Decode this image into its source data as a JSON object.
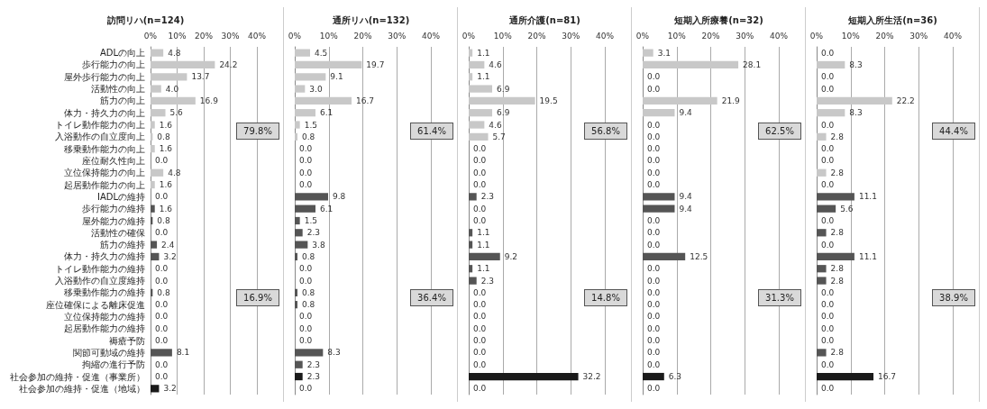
{
  "chart_data": [
    {
      "type": "bar",
      "orientation": "horizontal",
      "title": "訪問リハ(n=124)",
      "categories": [
        "ADLの向上",
        "歩行能力の向上",
        "屋外歩行能力の向上",
        "活動性の向上",
        "筋力の向上",
        "体力・持久力の向上",
        "トイレ動作能力の向上",
        "入浴動作の自立度向上",
        "移乗動作能力の向上",
        "座位耐久性向上",
        "立位保持能力の向上",
        "起居動作能力の向上",
        "IADLの維持",
        "歩行能力の維持",
        "屋外能力の維持",
        "活動性の確保",
        "筋力の維持",
        "体力・持久力の維持",
        "トイレ動作能力の維持",
        "入浴動作の自立度維持",
        "移乗動作能力の維持",
        "座位確保による離床促進",
        "立位保持能力の維持",
        "起居動作能力の維持",
        "褥瘡予防",
        "関節可動域の維持",
        "拘縮の進行予防",
        "社会参加の維持・促進（事業所）",
        "社会参加の維持・促進（地域）"
      ],
      "values": [
        4.8,
        24.2,
        13.7,
        4.0,
        16.9,
        5.6,
        1.6,
        0.8,
        1.6,
        0.0,
        4.8,
        1.6,
        0.0,
        1.6,
        0.8,
        0.0,
        2.4,
        3.2,
        0.0,
        0.0,
        0.8,
        0.0,
        0.0,
        0.0,
        0.0,
        8.1,
        0.0,
        0.0,
        3.2
      ],
      "value_labels": [
        "4.8",
        "24.2",
        "13.7",
        "4.0",
        "16.9",
        "5.6",
        "1.6",
        "0.8",
        "1.6",
        "0.0",
        "4.8",
        "1.6",
        "0.0",
        "1.6",
        "0.8",
        "0.0",
        "2.4",
        "3.2",
        "0.0",
        "0.0",
        "0.8",
        "0.0",
        "0.0",
        "0.0",
        "0.0",
        "8.1",
        "0.0",
        "0.0",
        "3.2"
      ],
      "colors": [
        "#c8c8c8",
        "#c8c8c8",
        "#c8c8c8",
        "#c8c8c8",
        "#c8c8c8",
        "#c8c8c8",
        "#c8c8c8",
        "#c8c8c8",
        "#c8c8c8",
        "#c8c8c8",
        "#c8c8c8",
        "#c8c8c8",
        "#555555",
        "#555555",
        "#555555",
        "#555555",
        "#555555",
        "#555555",
        "#555555",
        "#555555",
        "#555555",
        "#555555",
        "#555555",
        "#555555",
        "#555555",
        "#555555",
        "#555555",
        "#1a1a1a",
        "#1a1a1a"
      ],
      "xlim": [
        0,
        40
      ],
      "xticks": [
        {
          "value": 0,
          "label": "0%"
        },
        {
          "value": 10,
          "label": "10%"
        },
        {
          "value": 20,
          "label": "20%"
        },
        {
          "value": 30,
          "label": "30%"
        },
        {
          "value": 40,
          "label": "40%"
        }
      ],
      "grid": "x",
      "annotations": [
        "79.8%",
        "16.9%"
      ]
    },
    {
      "type": "bar",
      "orientation": "horizontal",
      "title": "通所リハ(n=132)",
      "categories": [
        null,
        null,
        null,
        null,
        null,
        null,
        null,
        null,
        null,
        null,
        null,
        null,
        null,
        null,
        null,
        null,
        null,
        null,
        null,
        null,
        null,
        null,
        null,
        null,
        null,
        null,
        null,
        null,
        null
      ],
      "values": [
        4.5,
        19.7,
        9.1,
        3.0,
        16.7,
        6.1,
        1.5,
        0.8,
        0.0,
        0.0,
        0.0,
        0.0,
        9.8,
        6.1,
        1.5,
        2.3,
        3.8,
        0.8,
        0.0,
        0.0,
        0.8,
        0.8,
        0.0,
        0.0,
        0.0,
        8.3,
        2.3,
        2.3,
        0.0
      ],
      "value_labels": [
        "4.5",
        "19.7",
        "9.1",
        "3.0",
        "16.7",
        "6.1",
        "1.5",
        "0.8",
        "0.0",
        "0.0",
        "0.0",
        "0.0",
        "9.8",
        "6.1",
        "1.5",
        "2.3",
        "3.8",
        "0.8",
        "0.0",
        "0.0",
        "0.8",
        "0.8",
        "0.0",
        "0.0",
        "0.0",
        "8.3",
        "2.3",
        "2.3",
        "0.0"
      ],
      "colors": [
        "#c8c8c8",
        "#c8c8c8",
        "#c8c8c8",
        "#c8c8c8",
        "#c8c8c8",
        "#c8c8c8",
        "#c8c8c8",
        "#c8c8c8",
        "#c8c8c8",
        "#c8c8c8",
        "#c8c8c8",
        "#c8c8c8",
        "#555555",
        "#555555",
        "#555555",
        "#555555",
        "#555555",
        "#555555",
        "#555555",
        "#555555",
        "#555555",
        "#555555",
        "#555555",
        "#555555",
        "#555555",
        "#555555",
        "#555555",
        "#1a1a1a",
        "#1a1a1a"
      ],
      "xlim": [
        0,
        40
      ],
      "xticks": [
        {
          "value": 0,
          "label": "0%"
        },
        {
          "value": 10,
          "label": "10%"
        },
        {
          "value": 20,
          "label": "20%"
        },
        {
          "value": 30,
          "label": "30%"
        },
        {
          "value": 40,
          "label": "40%"
        }
      ],
      "grid": "x",
      "tick_labels": "x",
      "annotations": [
        "61.4%",
        "36.4%"
      ]
    },
    {
      "type": "bar",
      "orientation": "horizontal",
      "title": "通所介護(n=81)",
      "categories": [
        null,
        null,
        null,
        null,
        null,
        null,
        null,
        null,
        null,
        null,
        null,
        null,
        null,
        null,
        null,
        null,
        null,
        null,
        null,
        null,
        null,
        null,
        null,
        null,
        null,
        null,
        null,
        null,
        null
      ],
      "values": [
        1.1,
        4.6,
        1.1,
        6.9,
        19.5,
        6.9,
        4.6,
        5.7,
        0.0,
        0.0,
        0.0,
        0.0,
        2.3,
        0.0,
        0.0,
        1.1,
        1.1,
        9.2,
        1.1,
        2.3,
        0.0,
        0.0,
        0.0,
        0.0,
        0.0,
        0.0,
        0.0,
        32.2,
        0.0
      ],
      "value_labels": [
        "1.1",
        "4.6",
        "1.1",
        "6.9",
        "19.5",
        "6.9",
        "4.6",
        "5.7",
        "0.0",
        "0.0",
        "0.0",
        "0.0",
        "2.3",
        "0.0",
        "0.0",
        "1.1",
        "1.1",
        "9.2",
        "1.1",
        "2.3",
        "0.0",
        "0.0",
        "0.0",
        "0.0",
        "0.0",
        "0.0",
        "0.0",
        "32.2",
        "0.0"
      ],
      "colors": [
        "#c8c8c8",
        "#c8c8c8",
        "#c8c8c8",
        "#c8c8c8",
        "#c8c8c8",
        "#c8c8c8",
        "#c8c8c8",
        "#c8c8c8",
        "#c8c8c8",
        "#c8c8c8",
        "#c8c8c8",
        "#c8c8c8",
        "#555555",
        "#555555",
        "#555555",
        "#555555",
        "#555555",
        "#555555",
        "#555555",
        "#555555",
        "#555555",
        "#555555",
        "#555555",
        "#555555",
        "#555555",
        "#555555",
        "#555555",
        "#1a1a1a",
        "#1a1a1a"
      ],
      "xlim": [
        0,
        40
      ],
      "xticks": [
        {
          "value": 0,
          "label": "0%"
        },
        {
          "value": 10,
          "label": "10%"
        },
        {
          "value": 20,
          "label": "20%"
        },
        {
          "value": 30,
          "label": "30%"
        },
        {
          "value": 40,
          "label": "40%"
        }
      ],
      "grid": "x",
      "tick_labels": "x",
      "annotations": [
        "56.8%",
        "14.8%"
      ]
    },
    {
      "type": "bar",
      "orientation": "horizontal",
      "title": "短期入所療養(n=32)",
      "categories": [
        null,
        null,
        null,
        null,
        null,
        null,
        null,
        null,
        null,
        null,
        null,
        null,
        null,
        null,
        null,
        null,
        null,
        null,
        null,
        null,
        null,
        null,
        null,
        null,
        null,
        null,
        null,
        null,
        null
      ],
      "values": [
        3.1,
        28.1,
        0.0,
        0.0,
        21.9,
        9.4,
        0.0,
        0.0,
        0.0,
        0.0,
        0.0,
        0.0,
        9.4,
        9.4,
        0.0,
        0.0,
        0.0,
        12.5,
        0.0,
        0.0,
        0.0,
        0.0,
        0.0,
        0.0,
        0.0,
        0.0,
        0.0,
        6.3,
        0.0
      ],
      "value_labels": [
        "3.1",
        "28.1",
        "0.0",
        "0.0",
        "21.9",
        "9.4",
        "0.0",
        "0.0",
        "0.0",
        "0.0",
        "0.0",
        "0.0",
        "9.4",
        "9.4",
        "0.0",
        "0.0",
        "0.0",
        "12.5",
        "0.0",
        "0.0",
        "0.0",
        "0.0",
        "0.0",
        "0.0",
        "0.0",
        "0.0",
        "0.0",
        "6.3",
        "0.0"
      ],
      "colors": [
        "#c8c8c8",
        "#c8c8c8",
        "#c8c8c8",
        "#c8c8c8",
        "#c8c8c8",
        "#c8c8c8",
        "#c8c8c8",
        "#c8c8c8",
        "#c8c8c8",
        "#c8c8c8",
        "#c8c8c8",
        "#c8c8c8",
        "#555555",
        "#555555",
        "#555555",
        "#555555",
        "#555555",
        "#555555",
        "#555555",
        "#555555",
        "#555555",
        "#555555",
        "#555555",
        "#555555",
        "#555555",
        "#555555",
        "#555555",
        "#1a1a1a",
        "#1a1a1a"
      ],
      "xlim": [
        0,
        40
      ],
      "xticks": [
        {
          "value": 0,
          "label": "0%"
        },
        {
          "value": 10,
          "label": "10%"
        },
        {
          "value": 20,
          "label": "20%"
        },
        {
          "value": 30,
          "label": "30%"
        },
        {
          "value": 40,
          "label": "40%"
        }
      ],
      "grid": "x",
      "tick_labels": "x",
      "annotations": [
        "62.5%",
        "31.3%"
      ]
    },
    {
      "type": "bar",
      "orientation": "horizontal",
      "title": "短期入所生活(n=36)",
      "categories": [
        null,
        null,
        null,
        null,
        null,
        null,
        null,
        null,
        null,
        null,
        null,
        null,
        null,
        null,
        null,
        null,
        null,
        null,
        null,
        null,
        null,
        null,
        null,
        null,
        null,
        null,
        null,
        null,
        null
      ],
      "values": [
        0.0,
        8.3,
        0.0,
        0.0,
        22.2,
        8.3,
        0.0,
        2.8,
        0.0,
        0.0,
        2.8,
        0.0,
        11.1,
        5.6,
        0.0,
        2.8,
        0.0,
        11.1,
        2.8,
        2.8,
        0.0,
        0.0,
        0.0,
        0.0,
        0.0,
        2.8,
        0.0,
        16.7,
        0.0
      ],
      "value_labels": [
        "0.0",
        "8.3",
        "0.0",
        "0.0",
        "22.2",
        "8.3",
        "0.0",
        "2.8",
        "0.0",
        "0.0",
        "2.8",
        "0.0",
        "11.1",
        "5.6",
        "0.0",
        "2.8",
        "0.0",
        "11.1",
        "2.8",
        "2.8",
        "0.0",
        "0.0",
        "0.0",
        "0.0",
        "0.0",
        "2.8",
        "0.0",
        "16.7",
        "0.0"
      ],
      "colors": [
        "#c8c8c8",
        "#c8c8c8",
        "#c8c8c8",
        "#c8c8c8",
        "#c8c8c8",
        "#c8c8c8",
        "#c8c8c8",
        "#c8c8c8",
        "#c8c8c8",
        "#c8c8c8",
        "#c8c8c8",
        "#c8c8c8",
        "#555555",
        "#555555",
        "#555555",
        "#555555",
        "#555555",
        "#555555",
        "#555555",
        "#555555",
        "#555555",
        "#555555",
        "#555555",
        "#555555",
        "#555555",
        "#555555",
        "#555555",
        "#1a1a1a",
        "#1a1a1a"
      ],
      "xlim": [
        0,
        40
      ],
      "xticks": [
        {
          "value": 0,
          "label": "0%"
        },
        {
          "value": 10,
          "label": "10%"
        },
        {
          "value": 20,
          "label": "20%"
        },
        {
          "value": 30,
          "label": "30%"
        },
        {
          "value": 40,
          "label": "40%"
        }
      ],
      "grid": "x",
      "tick_labels": "x",
      "annotations": [
        "44.4%",
        "38.9%"
      ]
    }
  ]
}
